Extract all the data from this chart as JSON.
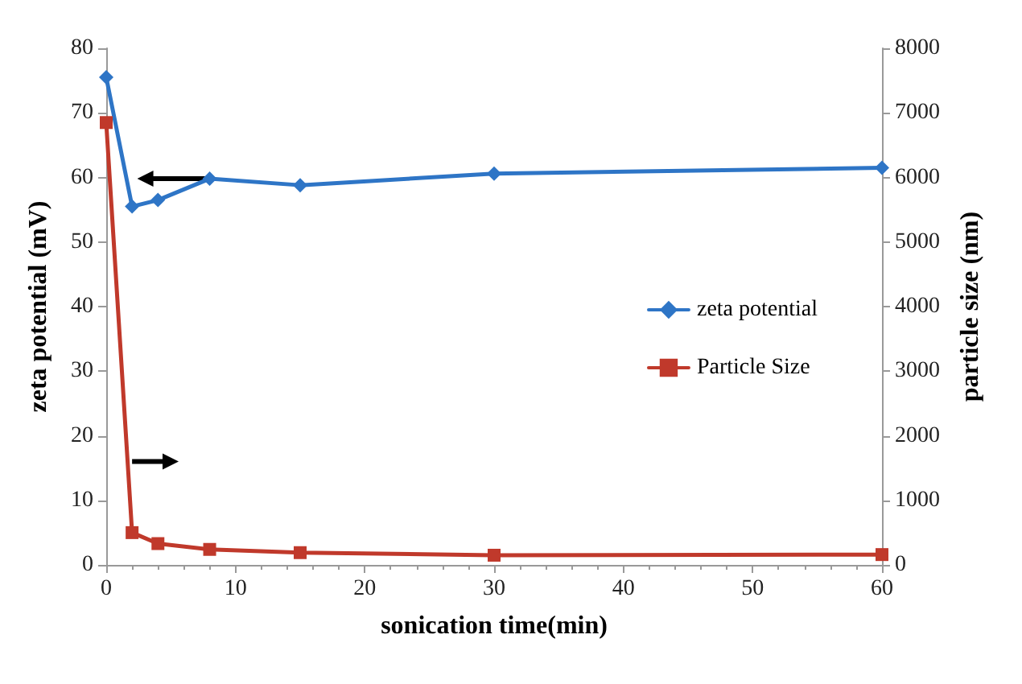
{
  "chart_data": {
    "type": "line",
    "xlabel": "sonication time(min)",
    "ylabel": "zeta potential (mV)",
    "y2label": "particle size (nm)",
    "x": [
      0,
      2,
      4,
      8,
      15,
      30,
      60
    ],
    "series": [
      {
        "name": "zeta potential",
        "color": "#2e75c6",
        "marker": "diamond",
        "values": [
          75.5,
          55.5,
          56.5,
          59.8,
          58.8,
          60.6,
          61.5
        ]
      },
      {
        "name": "Particle Size",
        "color": "#c0392b",
        "marker": "square",
        "axis": "y2",
        "values": [
          6850,
          500,
          330,
          240,
          190,
          150,
          160
        ]
      }
    ],
    "xlim": [
      0,
      60
    ],
    "xticks": [
      0,
      10,
      20,
      30,
      40,
      50,
      60
    ],
    "ylim": [
      0,
      80
    ],
    "yticks": [
      0,
      10,
      20,
      30,
      40,
      50,
      60,
      70,
      80
    ],
    "y2lim": [
      0,
      8000
    ],
    "y2ticks": [
      0,
      1000,
      2000,
      3000,
      4000,
      5000,
      6000,
      7000,
      8000
    ],
    "grid": false,
    "legend": "right",
    "line_style": "solid"
  }
}
